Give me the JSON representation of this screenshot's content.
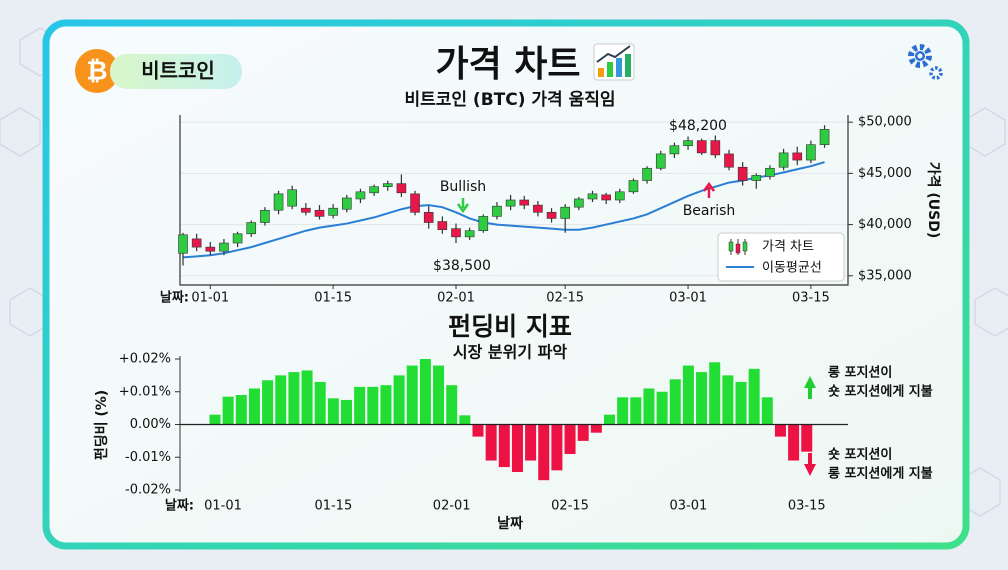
{
  "header": {
    "logo_symbol": "₿",
    "badge": "비트코인"
  },
  "chart_data": [
    {
      "type": "candlestick",
      "title": "가격 차트",
      "subtitle": "비트코인 (BTC) 가격 움직임",
      "xtick_prefix": "날짜:",
      "ylabel": "가격 (USD)",
      "categories": [
        null,
        null,
        "01-01",
        null,
        null,
        null,
        null,
        null,
        null,
        null,
        null,
        "01-15",
        null,
        null,
        null,
        null,
        null,
        null,
        null,
        null,
        "02-01",
        null,
        null,
        null,
        null,
        null,
        null,
        null,
        "02-15",
        null,
        null,
        null,
        null,
        null,
        null,
        null,
        null,
        "03-01",
        null,
        null,
        null,
        null,
        null,
        null,
        null,
        null,
        "03-15",
        null
      ],
      "series": [
        {
          "name": "가격 차트",
          "up_color": "#2ecc40",
          "down_color": "#e8174a",
          "open": [
            37200,
            38600,
            37800,
            37400,
            38200,
            39100,
            40200,
            41400,
            41800,
            41600,
            41400,
            40900,
            41500,
            42500,
            43100,
            43700,
            44000,
            43000,
            41200,
            40300,
            39600,
            38800,
            39400,
            40800,
            41800,
            42400,
            41900,
            41200,
            40600,
            41700,
            42500,
            42900,
            42400,
            43200,
            44300,
            45500,
            46900,
            47700,
            48200,
            48200,
            46900,
            45600,
            44300,
            44700,
            45600,
            47000,
            46300,
            47800
          ],
          "high": [
            39200,
            39100,
            38300,
            38600,
            39300,
            40400,
            41700,
            43300,
            43800,
            42100,
            41900,
            42000,
            42900,
            43500,
            43900,
            44300,
            44900,
            43300,
            41800,
            40800,
            40100,
            39700,
            41000,
            42200,
            42900,
            42800,
            42300,
            41600,
            42000,
            42700,
            43300,
            43100,
            43500,
            44500,
            45700,
            47200,
            48000,
            48600,
            48400,
            48700,
            47300,
            46100,
            45000,
            45800,
            47400,
            47600,
            48200,
            49700
          ],
          "low": [
            36000,
            37400,
            37000,
            37000,
            37800,
            38800,
            39900,
            41000,
            41500,
            40900,
            40500,
            40600,
            41200,
            42100,
            42800,
            43300,
            42700,
            40900,
            39600,
            39100,
            38200,
            38500,
            39200,
            40500,
            41400,
            41500,
            40800,
            40200,
            39200,
            41400,
            42200,
            42000,
            42100,
            43000,
            44000,
            45300,
            46500,
            47300,
            46800,
            46500,
            45300,
            43800,
            43500,
            44400,
            45300,
            45800,
            46000,
            47500
          ],
          "close": [
            39000,
            37800,
            37400,
            38200,
            39100,
            40200,
            41400,
            43000,
            43400,
            41200,
            40800,
            41600,
            42600,
            43200,
            43700,
            44000,
            43100,
            41200,
            40200,
            39500,
            38800,
            39400,
            40800,
            41800,
            42400,
            41900,
            41200,
            40600,
            41700,
            42500,
            43000,
            42400,
            43200,
            44300,
            45500,
            46900,
            47700,
            48200,
            47000,
            46800,
            45600,
            44300,
            44800,
            45500,
            47000,
            46300,
            47800,
            49300
          ]
        },
        {
          "name": "이동평균선",
          "type": "line",
          "color": "#2a7fd4",
          "values": [
            36800,
            36900,
            37000,
            37200,
            37500,
            37800,
            38200,
            38600,
            39000,
            39400,
            39700,
            39900,
            40100,
            40400,
            40700,
            41100,
            41500,
            41800,
            41900,
            41700,
            41200,
            40600,
            40200,
            40000,
            39900,
            39800,
            39700,
            39600,
            39500,
            39500,
            39700,
            40000,
            40300,
            40600,
            41000,
            41600,
            42200,
            42800,
            43300,
            43700,
            44100,
            44300,
            44600,
            44800,
            45100,
            45400,
            45700,
            46100
          ]
        }
      ],
      "ylim": [
        34100,
        50700
      ],
      "yticks": [
        {
          "value": 35000,
          "label": "$35,000"
        },
        {
          "value": 40000,
          "label": "$40,000"
        },
        {
          "value": 45000,
          "label": "$45,000"
        },
        {
          "value": 50000,
          "label": "$50,000"
        }
      ],
      "grid": true,
      "legend": "lower right",
      "annotations": [
        {
          "text": "$48,200"
        },
        {
          "text": "$38,500"
        },
        {
          "text": "Bullish"
        },
        {
          "text": "Bearish"
        }
      ]
    },
    {
      "type": "bar",
      "title": "펀딩비 지표",
      "subtitle": "시장 분위기 파악",
      "xtick_prefix": "날짜:",
      "xlabel": "날짜",
      "ylabel": "펀딩비 (%)",
      "categories": [
        "01-01",
        null,
        null,
        null,
        null,
        null,
        null,
        null,
        null,
        "01-15",
        null,
        null,
        null,
        null,
        null,
        null,
        null,
        null,
        "02-01",
        null,
        null,
        null,
        null,
        null,
        null,
        null,
        null,
        "02-15",
        null,
        null,
        null,
        null,
        null,
        null,
        null,
        null,
        "03-01",
        null,
        null,
        null,
        null,
        null,
        null,
        null,
        null,
        "03-15"
      ],
      "values": [
        0.003,
        0.0085,
        0.009,
        0.011,
        0.0135,
        0.015,
        0.016,
        0.0165,
        0.013,
        0.008,
        0.0075,
        0.0115,
        0.0115,
        0.012,
        0.015,
        0.018,
        0.02,
        0.018,
        0.012,
        0.0028,
        -0.0037,
        -0.011,
        -0.013,
        -0.0145,
        -0.011,
        -0.017,
        -0.014,
        -0.009,
        -0.005,
        -0.0025,
        0.003,
        0.0083,
        0.0083,
        0.011,
        0.01,
        0.0138,
        0.018,
        0.016,
        0.019,
        0.015,
        0.013,
        0.017,
        0.0083,
        -0.0037,
        -0.011,
        -0.0083
      ],
      "positive_color": "#22dd33",
      "negative_color": "#ee1144",
      "ylim": [
        -0.02,
        0.02
      ],
      "yticks": [
        {
          "value": 0.02,
          "label": "+0.02%"
        },
        {
          "value": 0.01,
          "label": "+0.01%"
        },
        {
          "value": 0,
          "label": "0.00%"
        },
        {
          "value": -0.01,
          "label": "-0.01%"
        },
        {
          "value": -0.02,
          "label": "-0.02%"
        }
      ],
      "annotations": [
        {
          "lines": [
            "롱 포지션이",
            "숏 포지션에게 지불"
          ]
        },
        {
          "lines": [
            "숏 포지션이",
            "롱 포지션에게 지불"
          ]
        }
      ]
    }
  ]
}
